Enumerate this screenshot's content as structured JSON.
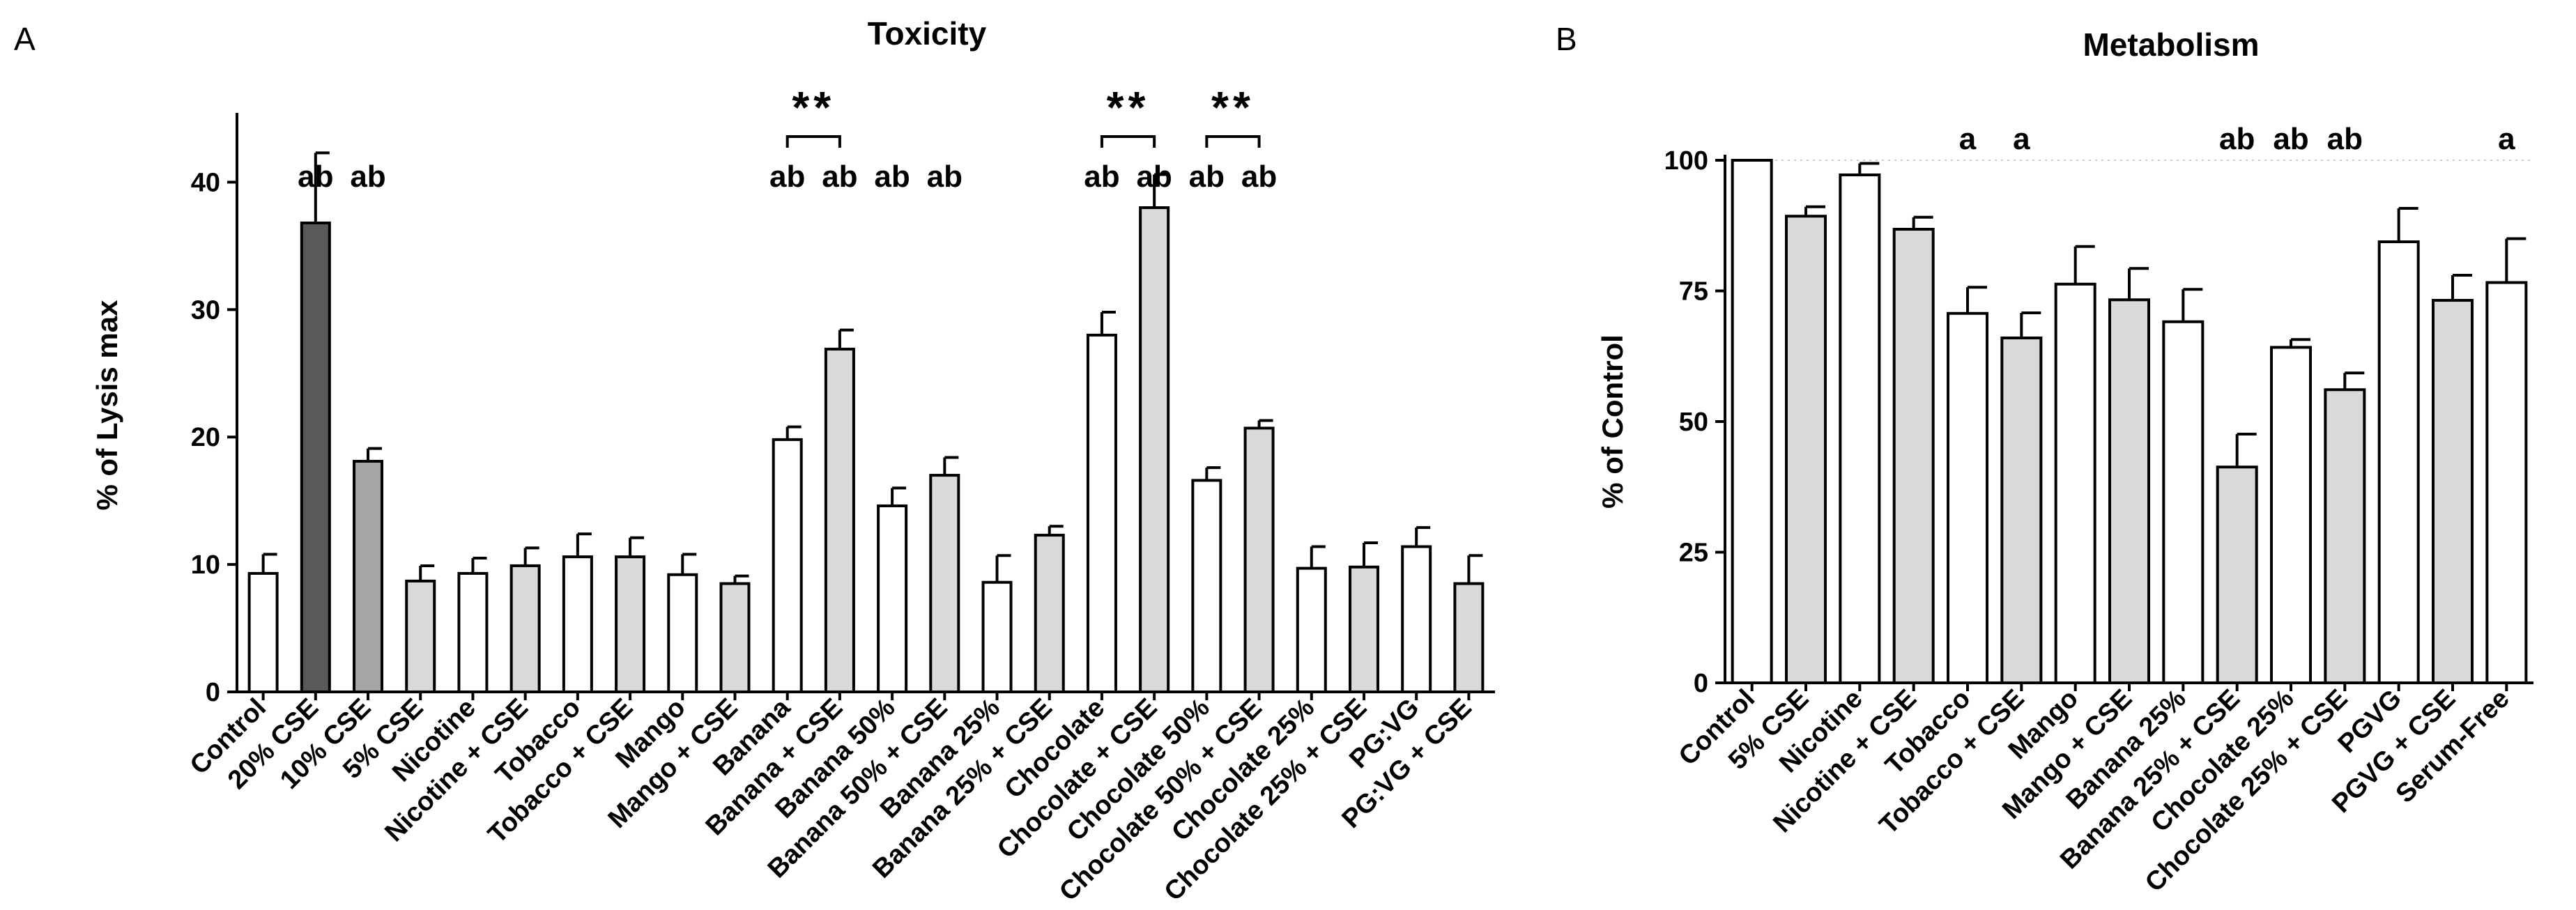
{
  "chart_data": [
    {
      "panel": "A",
      "type": "bar",
      "title": "Toxicity",
      "xlabel": "",
      "ylabel": "% of Lysis max",
      "ylim": [
        0,
        45
      ],
      "yticks": [
        0,
        10,
        20,
        30,
        40
      ],
      "grid": false,
      "categories": [
        "Control",
        "20% CSE",
        "10% CSE",
        "5% CSE",
        "Nicotine",
        "Nicotine + CSE",
        "Tobacco",
        "Tobacco + CSE",
        "Mango",
        "Mango + CSE",
        "Banana",
        "Banana + CSE",
        "Banana 50%",
        "Banana 50% + CSE",
        "Banana 25%",
        "Banana 25% + CSE",
        "Chocolate",
        "Chocolate + CSE",
        "Chocolate 50%",
        "Chocolate 50% + CSE",
        "Chocolate 25%",
        "Chocolate 25% + CSE",
        "PG:VG",
        "PG:VG + CSE"
      ],
      "values": [
        9.3,
        36.8,
        18.1,
        8.7,
        9.3,
        9.9,
        10.6,
        10.6,
        9.2,
        8.5,
        19.8,
        26.9,
        14.6,
        17.0,
        8.6,
        12.3,
        28.0,
        38.0,
        16.6,
        20.7,
        9.7,
        9.8,
        11.4,
        8.5
      ],
      "errors": [
        1.5,
        5.5,
        1.0,
        1.2,
        1.2,
        1.4,
        1.8,
        1.5,
        1.6,
        0.6,
        1.0,
        1.5,
        1.4,
        1.4,
        2.1,
        0.7,
        1.8,
        2.6,
        1.0,
        0.6,
        1.7,
        1.9,
        1.5,
        2.2
      ],
      "bar_colors": [
        "#ffffff",
        "#595959",
        "#a6a6a6",
        "#d9d9d9",
        "#ffffff",
        "#d9d9d9",
        "#ffffff",
        "#d9d9d9",
        "#ffffff",
        "#d9d9d9",
        "#ffffff",
        "#d9d9d9",
        "#ffffff",
        "#d9d9d9",
        "#ffffff",
        "#d9d9d9",
        "#ffffff",
        "#d9d9d9",
        "#ffffff",
        "#d9d9d9",
        "#ffffff",
        "#d9d9d9",
        "#ffffff",
        "#d9d9d9"
      ],
      "annotations": [
        "",
        "ab",
        "ab",
        "",
        "",
        "",
        "",
        "",
        "",
        "",
        "ab",
        "ab",
        "ab",
        "ab",
        "",
        "",
        "ab",
        "ab",
        "ab",
        "ab",
        "",
        "",
        "",
        ""
      ],
      "significance_brackets": [
        {
          "from": "Banana",
          "to": "Banana + CSE",
          "label": "**"
        },
        {
          "from": "Chocolate",
          "to": "Chocolate + CSE",
          "label": "**"
        },
        {
          "from": "Chocolate 50%",
          "to": "Chocolate 50% + CSE",
          "label": "**"
        }
      ]
    },
    {
      "panel": "B",
      "type": "bar",
      "title": "Metabolism",
      "xlabel": "",
      "ylabel": "% of Control",
      "ylim": [
        0,
        100
      ],
      "yticks": [
        0,
        25,
        50,
        75,
        100
      ],
      "grid": false,
      "reference_line": 100,
      "categories": [
        "Control",
        "5% CSE",
        "Nicotine",
        "Nicotine + CSE",
        "Tobacco",
        "Tobacco + CSE",
        "Mango",
        "Mango + CSE",
        "Banana 25%",
        "Banana 25% + CSE",
        "Chocolate 25%",
        "Chocolate 25% + CSE",
        "PGVG",
        "PGVG + CSE",
        "Serum-Free"
      ],
      "values": [
        100,
        89.3,
        97.2,
        86.8,
        70.7,
        66.0,
        76.3,
        73.3,
        69.1,
        41.3,
        64.2,
        56.1,
        84.4,
        73.2,
        76.6
      ],
      "errors": [
        0,
        1.8,
        2.2,
        2.3,
        5.0,
        4.8,
        7.2,
        6.0,
        6.2,
        6.3,
        1.5,
        3.2,
        6.4,
        4.8,
        8.4
      ],
      "bar_colors": [
        "#ffffff",
        "#d9d9d9",
        "#ffffff",
        "#d9d9d9",
        "#ffffff",
        "#d9d9d9",
        "#ffffff",
        "#d9d9d9",
        "#ffffff",
        "#d9d9d9",
        "#ffffff",
        "#d9d9d9",
        "#ffffff",
        "#d9d9d9",
        "#ffffff"
      ],
      "annotations": [
        "",
        "",
        "",
        "",
        "a",
        "a",
        "",
        "",
        "",
        "ab",
        "ab",
        "ab",
        "",
        "",
        "a"
      ]
    }
  ]
}
